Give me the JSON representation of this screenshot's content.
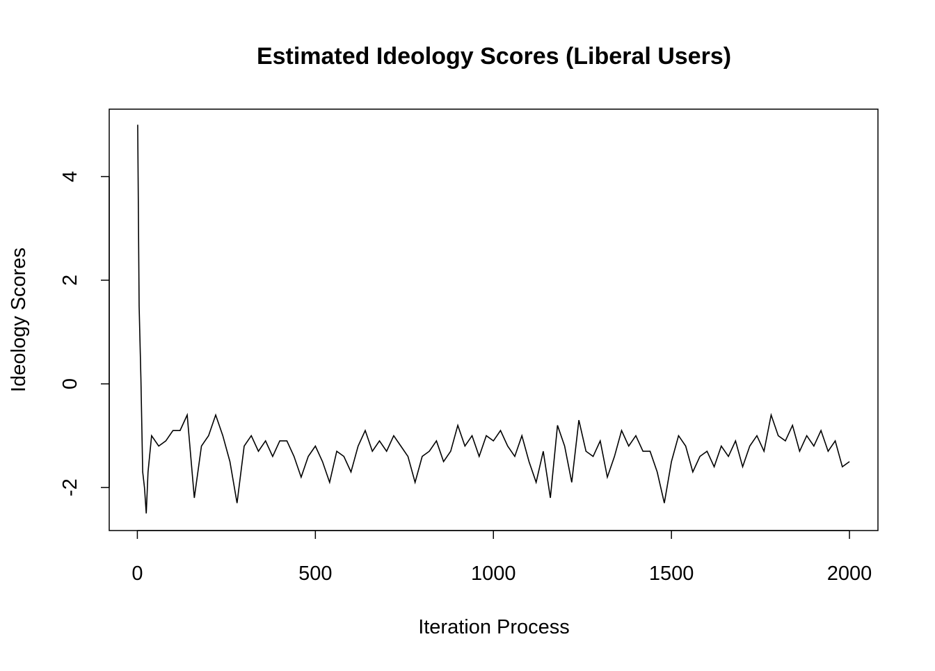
{
  "chart_data": {
    "type": "line",
    "title": "Estimated Ideology Scores (Liberal Users)",
    "x_label": "Iteration Process",
    "y_label": "Ideology Scores",
    "x": [
      1,
      5,
      10,
      15,
      20,
      25,
      30,
      40,
      60,
      80,
      100,
      120,
      140,
      160,
      180,
      200,
      220,
      240,
      260,
      280,
      300,
      320,
      340,
      360,
      380,
      400,
      420,
      440,
      460,
      480,
      500,
      520,
      540,
      560,
      580,
      600,
      620,
      640,
      660,
      680,
      700,
      720,
      740,
      760,
      780,
      800,
      820,
      840,
      860,
      880,
      900,
      920,
      940,
      960,
      980,
      1000,
      1020,
      1040,
      1060,
      1080,
      1100,
      1120,
      1140,
      1160,
      1180,
      1200,
      1220,
      1240,
      1260,
      1280,
      1300,
      1320,
      1340,
      1360,
      1380,
      1400,
      1420,
      1440,
      1460,
      1480,
      1500,
      1520,
      1540,
      1560,
      1580,
      1600,
      1620,
      1640,
      1660,
      1680,
      1700,
      1720,
      1740,
      1760,
      1780,
      1800,
      1820,
      1840,
      1860,
      1880,
      1900,
      1920,
      1940,
      1960,
      1980,
      2000
    ],
    "series": [
      {
        "color": "#000000",
        "values": [
          5.0,
          1.5,
          0.1,
          -1.7,
          -2.0,
          -2.5,
          -1.7,
          -1.0,
          -1.2,
          -1.1,
          -0.9,
          -0.9,
          -0.6,
          -2.2,
          -1.2,
          -1.0,
          -0.6,
          -1.0,
          -1.5,
          -2.3,
          -1.2,
          -1.0,
          -1.3,
          -1.1,
          -1.4,
          -1.1,
          -1.1,
          -1.4,
          -1.8,
          -1.4,
          -1.2,
          -1.5,
          -1.9,
          -1.3,
          -1.4,
          -1.7,
          -1.2,
          -0.9,
          -1.3,
          -1.1,
          -1.3,
          -1.0,
          -1.2,
          -1.4,
          -1.9,
          -1.4,
          -1.3,
          -1.1,
          -1.5,
          -1.3,
          -0.8,
          -1.2,
          -1.0,
          -1.4,
          -1.0,
          -1.1,
          -0.9,
          -1.2,
          -1.4,
          -1.0,
          -1.5,
          -1.9,
          -1.3,
          -2.2,
          -0.8,
          -1.2,
          -1.9,
          -0.7,
          -1.3,
          -1.4,
          -1.1,
          -1.8,
          -1.4,
          -0.9,
          -1.2,
          -1.0,
          -1.3,
          -1.3,
          -1.7,
          -2.3,
          -1.5,
          -1.0,
          -1.2,
          -1.7,
          -1.4,
          -1.3,
          -1.6,
          -1.2,
          -1.4,
          -1.1,
          -1.6,
          -1.2,
          -1.0,
          -1.3,
          -0.6,
          -1.0,
          -1.1,
          -0.8,
          -1.3,
          -1.0,
          -1.2,
          -0.9,
          -1.3,
          -1.1,
          -1.6,
          -1.5
        ]
      }
    ],
    "xlim": [
      -79,
      2080
    ],
    "xticks": [
      0,
      500,
      1000,
      1500,
      2000
    ],
    "ylim": [
      -2.83,
      5.3
    ],
    "yticks": [
      -2,
      0,
      2,
      4
    ]
  }
}
